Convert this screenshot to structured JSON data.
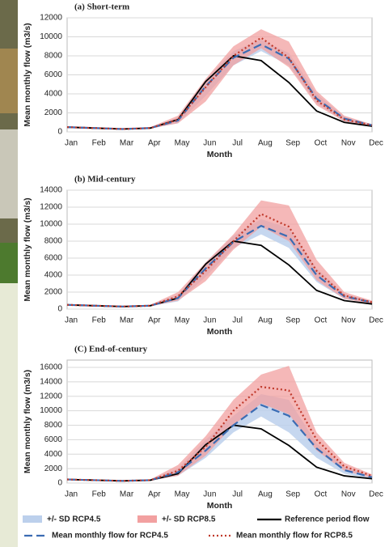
{
  "chart_data": [
    {
      "type": "line",
      "title": "(a) Short-term",
      "x_label": "Month",
      "y_label": "Mean monthly flow (m3/s)",
      "categories": [
        "Jan",
        "Feb",
        "Mar",
        "Apr",
        "May",
        "Jun",
        "Jul",
        "Aug",
        "Sep",
        "Oct",
        "Nov",
        "Dec"
      ],
      "ylim": [
        0,
        12000
      ],
      "yticks": [
        0,
        2000,
        4000,
        6000,
        8000,
        10000,
        12000
      ],
      "grid": true,
      "bands": [
        {
          "lower": [
            400,
            300,
            250,
            350,
            900,
            3800,
            7000,
            8500,
            7000,
            3000,
            1100,
            600
          ],
          "upper": [
            600,
            500,
            400,
            500,
            1500,
            5500,
            8500,
            9700,
            8300,
            4000,
            1600,
            800
          ]
        },
        {
          "lower": [
            400,
            300,
            250,
            350,
            900,
            3200,
            7000,
            8800,
            6800,
            2800,
            1100,
            600
          ],
          "upper": [
            600,
            500,
            400,
            500,
            1700,
            5600,
            9000,
            10800,
            9500,
            4300,
            1700,
            800
          ]
        }
      ],
      "series": [
        {
          "values": [
            500,
            400,
            300,
            400,
            1300,
            5300,
            8000,
            7500,
            5200,
            2200,
            1000,
            600
          ]
        },
        {
          "values": [
            500,
            400,
            300,
            400,
            1200,
            4800,
            7800,
            9200,
            7700,
            3500,
            1400,
            700
          ]
        },
        {
          "values": [
            500,
            400,
            300,
            400,
            1300,
            4700,
            8000,
            9900,
            7800,
            3300,
            1300,
            700
          ]
        }
      ]
    },
    {
      "type": "line",
      "title": "(b) Mid-century",
      "x_label": "Month",
      "y_label": "Mean monthly flow (m3/s)",
      "categories": [
        "Jan",
        "Feb",
        "Mar",
        "Apr",
        "May",
        "Jun",
        "Jul",
        "Aug",
        "Sep",
        "Oct",
        "Nov",
        "Dec"
      ],
      "ylim": [
        0,
        14000
      ],
      "yticks": [
        0,
        2000,
        4000,
        6000,
        8000,
        10000,
        12000,
        14000
      ],
      "grid": true,
      "bands": [
        {
          "lower": [
            400,
            300,
            250,
            350,
            900,
            3800,
            7200,
            8800,
            7200,
            3200,
            1200,
            600
          ],
          "upper": [
            600,
            500,
            400,
            500,
            1700,
            5500,
            8600,
            10600,
            9500,
            4800,
            1800,
            900
          ]
        },
        {
          "lower": [
            400,
            300,
            250,
            350,
            1000,
            3300,
            7000,
            9700,
            8000,
            3400,
            1200,
            600
          ],
          "upper": [
            600,
            500,
            400,
            500,
            2000,
            5500,
            8800,
            12800,
            12200,
            5800,
            2000,
            1000
          ]
        }
      ],
      "series": [
        {
          "values": [
            500,
            400,
            300,
            400,
            1300,
            5300,
            8000,
            7500,
            5200,
            2200,
            1000,
            600
          ]
        },
        {
          "values": [
            500,
            400,
            300,
            400,
            1300,
            4800,
            7900,
            9800,
            8500,
            4000,
            1500,
            800
          ]
        },
        {
          "values": [
            500,
            400,
            300,
            400,
            1500,
            4500,
            8000,
            11200,
            9700,
            4500,
            1600,
            800
          ]
        }
      ]
    },
    {
      "type": "line",
      "title": "(C) End-of-century",
      "x_label": "Month",
      "y_label": "Mean monthly flow (m3/s)",
      "categories": [
        "Jan",
        "Feb",
        "Mar",
        "Apr",
        "May",
        "Jun",
        "Jul",
        "Aug",
        "Sep",
        "Oct",
        "Nov",
        "Dec"
      ],
      "ylim": [
        0,
        17000
      ],
      "yticks": [
        0,
        2000,
        4000,
        6000,
        8000,
        10000,
        12000,
        14000,
        16000
      ],
      "grid": true,
      "bands": [
        {
          "lower": [
            400,
            300,
            250,
            350,
            1000,
            3500,
            7000,
            9200,
            7000,
            3500,
            1300,
            600
          ],
          "upper": [
            600,
            500,
            400,
            500,
            2000,
            6000,
            9300,
            12300,
            11500,
            5500,
            2300,
            1000
          ]
        },
        {
          "lower": [
            400,
            300,
            250,
            350,
            1000,
            3800,
            8000,
            11000,
            9500,
            4500,
            1700,
            700
          ],
          "upper": [
            600,
            500,
            400,
            500,
            2500,
            6500,
            11500,
            15000,
            16200,
            7000,
            2800,
            1200
          ]
        }
      ],
      "series": [
        {
          "values": [
            500,
            400,
            300,
            400,
            1300,
            5300,
            8000,
            7500,
            5200,
            2200,
            1000,
            600
          ]
        },
        {
          "values": [
            500,
            400,
            300,
            400,
            1500,
            4500,
            8000,
            10800,
            9300,
            4800,
            1800,
            800
          ]
        },
        {
          "values": [
            500,
            400,
            300,
            400,
            1700,
            5000,
            10000,
            13300,
            12800,
            6000,
            2300,
            1000
          ]
        }
      ]
    }
  ],
  "legend": {
    "bands": [
      {
        "name": "+/- SD RCP4.5",
        "color": "#bcd0ec"
      },
      {
        "name": "+/- SD RCP8.5",
        "color": "#f2a0a0"
      }
    ],
    "series": [
      {
        "name": "Reference period flow",
        "color": "#000000",
        "dash": "none"
      },
      {
        "name": "Mean monthly flow for RCP4.5",
        "color": "#3b6cb3",
        "dash": "10 5"
      },
      {
        "name": "Mean monthly flow for RCP8.5",
        "color": "#c0392b",
        "dash": "2 3"
      }
    ]
  }
}
